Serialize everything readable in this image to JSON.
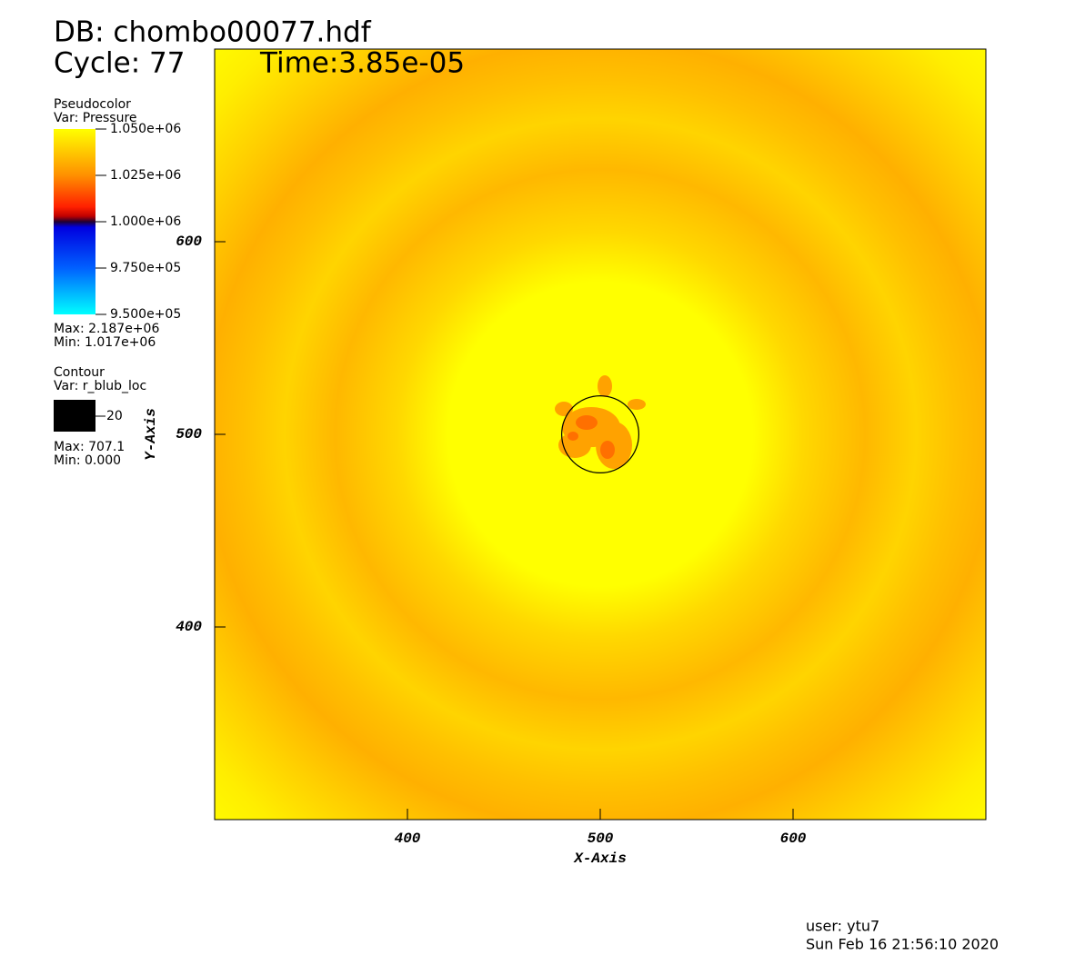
{
  "chart_data": {
    "type": "pseudocolor",
    "database": "DB: chombo00077.hdf",
    "cycle": "Cycle: 77",
    "time": "Time:3.85e-05",
    "x_label": "X-Axis",
    "y_label": "Y-Axis",
    "xlim": [
      300,
      700
    ],
    "xticks": [
      400,
      500,
      600
    ],
    "ylim": [
      300,
      700
    ],
    "yticks": [
      400,
      500,
      600
    ],
    "pseudocolor_legend": {
      "title": "Pseudocolor",
      "variable": "Var: Pressure",
      "range": [
        950000,
        1050000
      ],
      "ticks": [
        {
          "value": 1050000,
          "label": "1.050e+06"
        },
        {
          "value": 1025000,
          "label": "1.025e+06"
        },
        {
          "value": 1000000,
          "label": "1.000e+06"
        },
        {
          "value": 975000,
          "label": "9.750e+05"
        },
        {
          "value": 950000,
          "label": "9.500e+05"
        }
      ],
      "max": "Max: 2.187e+06",
      "min": "Min:  1.017e+06"
    },
    "contour": {
      "title": "Contour",
      "variable": "Var: r_blub_loc",
      "levels": [
        20
      ],
      "color": "#000000",
      "center": [
        500,
        500
      ],
      "max": "Max: 707.1",
      "min": "Min: 0.000"
    },
    "user": "user: ytu7",
    "date": "Sun Feb 16 21:56:10 2020"
  }
}
